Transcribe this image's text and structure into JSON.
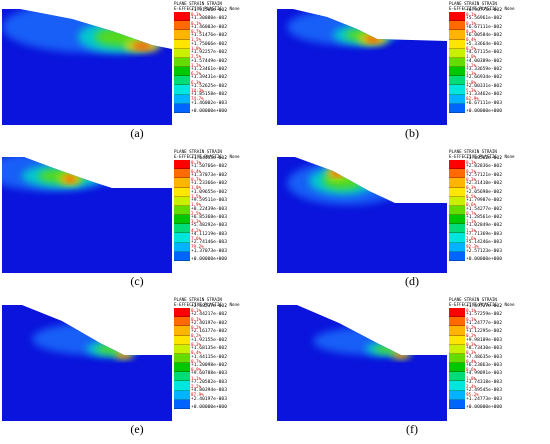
{
  "legend_title_line1": "PLANE STRAIN STRAIN",
  "legend_title_line2": "E-EFFECTIVE PLASTIC , None",
  "colors": [
    "#ff0000",
    "#ff6a00",
    "#ffb400",
    "#ffe600",
    "#c8f000",
    "#64dc00",
    "#00c800",
    "#00dc78",
    "#00e6dc",
    "#00b4ff",
    "#0064ff",
    "#0000ff"
  ],
  "panels": [
    {
      "caption": "(a)",
      "values": [
        "+1.91506e-002",
        "+1.30080e-002",
        "+1.46003e-002",
        "+1.51476e-002",
        "+1.75066e-002",
        "+1.92257e-002",
        "+1.57449e-002",
        "+1.23461e-002",
        "+1.39431e-002",
        "+1.52625e-002",
        "+1.85158e-002",
        "+1.46002e-003",
        "+0.00000e+000"
      ],
      "pcts": [
        "0.3%",
        "0.1%",
        "0.7%",
        "1.5%",
        "1.8%",
        "2.5%",
        "3.3%",
        "6.2%",
        "6.3%",
        "14.3%",
        "74.7%"
      ]
    },
    {
      "caption": "(b)",
      "values": [
        "+6.90775e-002",
        "+5.56961e-002",
        "+6.67111e-002",
        "+6.00584e-002",
        "+5.33664e-002",
        "+4.67115e-002",
        "+4.00389e-002",
        "+3.33659e-002",
        "+2.66934e-002",
        "+2.00331e-002",
        "+1.33462e-002",
        "+6.67111e-003",
        "+0.00000e+000"
      ],
      "pcts": [
        "0.1%",
        "0.1%",
        "0.3%",
        "0.4%",
        "0.5%",
        "1.0%",
        "1.2%",
        "1.3%",
        "1.8%",
        "5.3%",
        "82.9%"
      ]
    },
    {
      "caption": "(c)",
      "values": [
        "+1.64455e-002",
        "+1.50766e-002",
        "+1.37073e-002",
        "+1.23366e-002",
        "+1.09655e-002",
        "+9.59511e-003",
        "+8.22439e-003",
        "+6.85368e-003",
        "+5.48292e-003",
        "+4.11219e-003",
        "+2.74146e-003",
        "+1.37073e-003",
        "+0.00000e+000"
      ],
      "pcts": [
        "0.1%",
        "0.4%",
        "0.7%",
        "1.0%",
        "1.5%",
        "1.9%",
        "2.5%",
        "3.3%",
        "4.2%",
        "7.6%",
        "79.2%"
      ]
    },
    {
      "caption": "(d)",
      "values": [
        "+3.08562e-002",
        "+2.82836e-002",
        "+2.57121e-002",
        "+2.31410e-002",
        "+2.05698e-002",
        "+1.79987e-002",
        "+1.54277e-002",
        "+1.28561e-002",
        "+1.02849e-002",
        "+7.71369e-003",
        "+5.14246e-003",
        "+2.57123e-003",
        "+0.00000e+000"
      ],
      "pcts": [
        "0.1%",
        "0.2%",
        "0.3%",
        "0.3%",
        "0.5%",
        "0.6%",
        "0.7%",
        "1.1%",
        "1.3%",
        "2.6%",
        "92.3%"
      ]
    },
    {
      "caption": "(e)",
      "values": [
        "+2.68237e-002",
        "+2.44217e-002",
        "+2.40197e-002",
        "+2.16177e-002",
        "+1.92155e-002",
        "+1.68135e-002",
        "+1.44115e-002",
        "+1.20098e-002",
        "+9.60788e-003",
        "+7.20582e-003",
        "+4.80394e-003",
        "+2.40197e-003",
        "+0.00000e+000"
      ],
      "pcts": [
        "0.1%",
        "0.1%",
        "0.2%",
        "0.2%",
        "0.3%",
        "0.4%",
        "0.7%",
        "0.9%",
        "1.1%",
        "2.2%",
        "87.9%"
      ]
    },
    {
      "caption": "(f)",
      "values": [
        "+1.69727e-002",
        "+1.57259e-002",
        "+1.24777e-002",
        "+1.12295e-002",
        "+9.98109e-003",
        "+8.73430e-003",
        "+7.48635e-003",
        "+6.23863e-003",
        "+4.99091e-003",
        "+3.74318e-003",
        "+2.49545e-003",
        "+1.24773e-003",
        "+0.00000e+000"
      ],
      "pcts": [
        "0.1%",
        "0.1%",
        "0.2%",
        "0.2%",
        "0.3%",
        "0.3%",
        "0.4%",
        "0.6%",
        "1.0%",
        "2.4%",
        "95.2%"
      ]
    }
  ]
}
